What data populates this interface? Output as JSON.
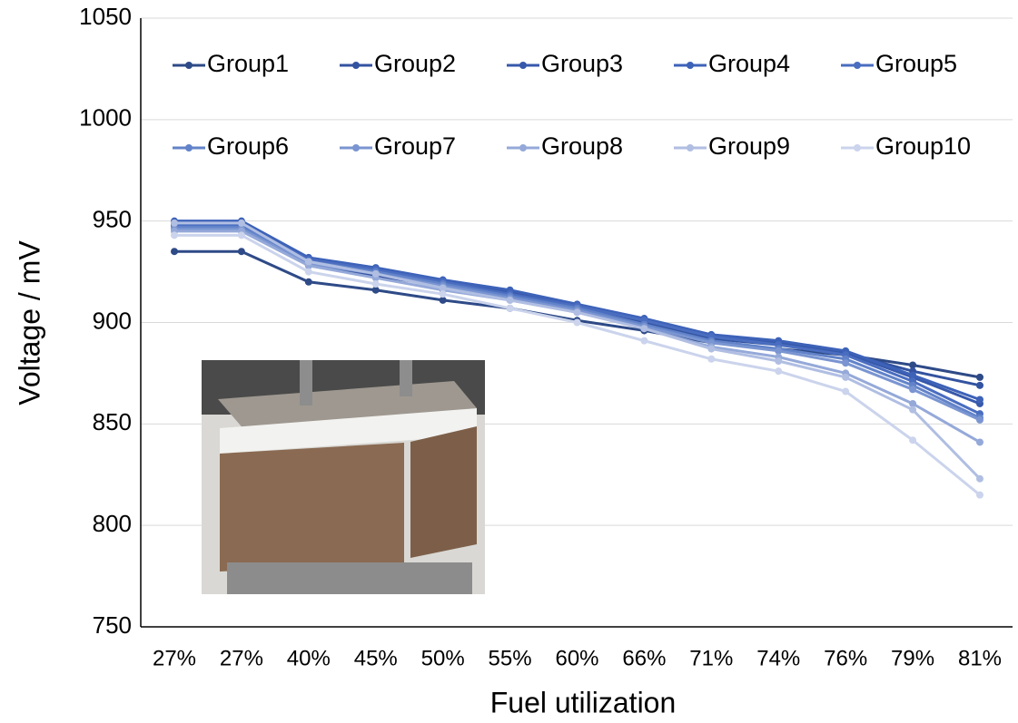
{
  "chart_data": {
    "type": "line",
    "x_label": "Fuel utilization",
    "y_label": "Voltage / mV",
    "categories": [
      "27%",
      "27%",
      "40%",
      "45%",
      "50%",
      "55%",
      "60%",
      "66%",
      "71%",
      "74%",
      "76%",
      "79%",
      "81%"
    ],
    "ylim": [
      750,
      1050
    ],
    "yticks": [
      750,
      800,
      850,
      900,
      950,
      1000,
      1050
    ],
    "grid": true,
    "legend": "top",
    "markers": true,
    "series": [
      {
        "name": "Group1",
        "color": "#2e4a87",
        "values": [
          935,
          935,
          920,
          916,
          911,
          907,
          901,
          896,
          890,
          887,
          884,
          879,
          873
        ]
      },
      {
        "name": "Group2",
        "color": "#3353a0",
        "values": [
          948,
          948,
          928,
          923,
          918,
          913,
          907,
          900,
          892,
          889,
          885,
          876,
          869
        ]
      },
      {
        "name": "Group3",
        "color": "#3759ab",
        "values": [
          949,
          949,
          931,
          926,
          920,
          915,
          908,
          901,
          893,
          890,
          885,
          873,
          860
        ]
      },
      {
        "name": "Group4",
        "color": "#3d62b8",
        "values": [
          950,
          950,
          932,
          927,
          921,
          916,
          909,
          902,
          894,
          891,
          886,
          874,
          862
        ]
      },
      {
        "name": "Group5",
        "color": "#4a6dc0",
        "values": [
          948,
          948,
          931,
          926,
          920,
          914,
          908,
          901,
          893,
          889,
          884,
          871,
          855
        ]
      },
      {
        "name": "Group6",
        "color": "#6283c9",
        "values": [
          947,
          947,
          930,
          925,
          919,
          913,
          907,
          899,
          891,
          887,
          882,
          869,
          853
        ]
      },
      {
        "name": "Group7",
        "color": "#7a95d1",
        "values": [
          946,
          946,
          929,
          924,
          918,
          912,
          906,
          898,
          890,
          886,
          880,
          867,
          852
        ]
      },
      {
        "name": "Group8",
        "color": "#95a9d9",
        "values": [
          945,
          945,
          928,
          922,
          916,
          911,
          905,
          897,
          888,
          883,
          875,
          860,
          841
        ]
      },
      {
        "name": "Group9",
        "color": "#b0bee2",
        "values": [
          949,
          949,
          930,
          924,
          917,
          911,
          905,
          897,
          887,
          881,
          873,
          857,
          823
        ]
      },
      {
        "name": "Group10",
        "color": "#cbd4ec",
        "values": [
          943,
          943,
          925,
          919,
          914,
          907,
          900,
          891,
          882,
          876,
          866,
          842,
          815
        ]
      }
    ]
  }
}
